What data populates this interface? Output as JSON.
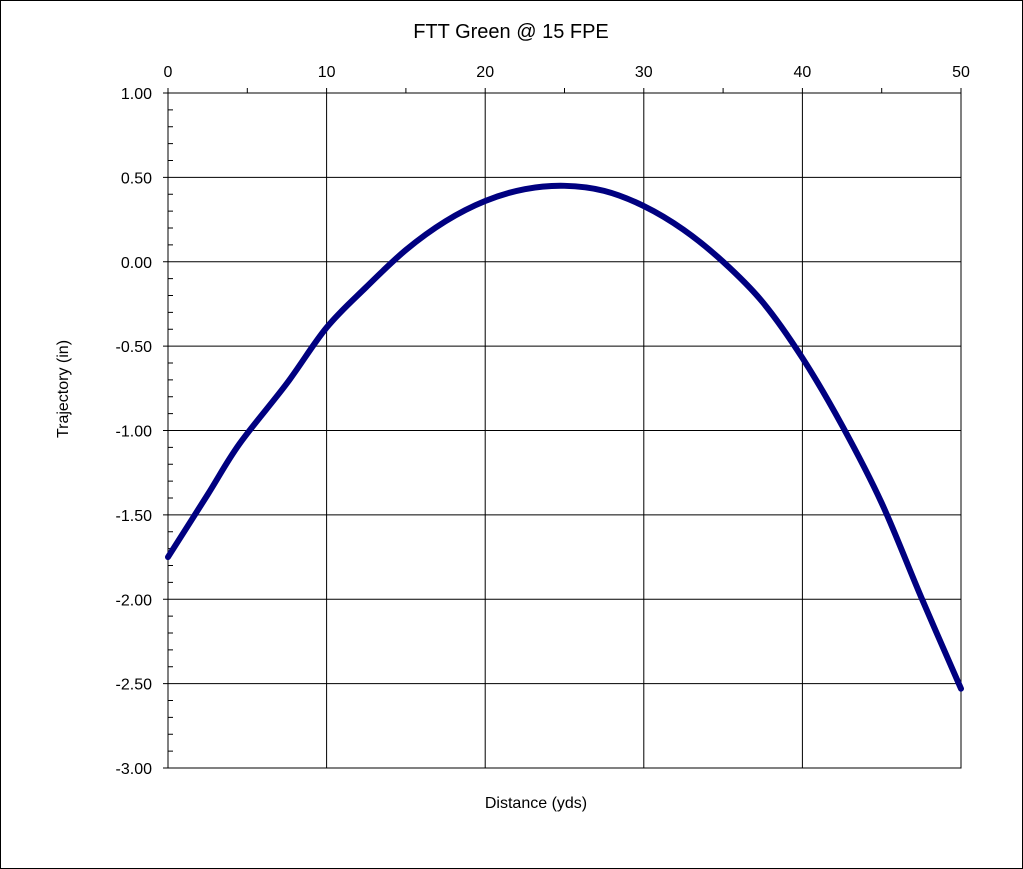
{
  "chart_data": {
    "type": "line",
    "title": "FTT Green @ 15 FPE",
    "xlabel": "Distance (yds)",
    "ylabel": "Trajectory (in)",
    "xlim": [
      0,
      50
    ],
    "ylim": [
      -3.0,
      1.0
    ],
    "x_ticks": [
      "0",
      "10",
      "20",
      "30",
      "40",
      "50"
    ],
    "y_ticks": [
      "1.00",
      "0.50",
      "0.00",
      "-0.50",
      "-1.00",
      "-1.50",
      "-2.00",
      "-2.50",
      "-3.00"
    ],
    "x_axis_position": "top",
    "grid": true,
    "legend": "none",
    "series": [
      {
        "color": "#000080",
        "x": [
          0,
          2.5,
          4.5,
          7.5,
          10,
          12.5,
          15,
          17.5,
          20,
          22.5,
          25,
          27.5,
          30,
          32.5,
          35,
          37.5,
          40,
          42.5,
          45,
          47.5,
          50
        ],
        "y": [
          -1.75,
          -1.38,
          -1.08,
          -0.72,
          -0.39,
          -0.15,
          0.07,
          0.24,
          0.36,
          0.43,
          0.45,
          0.42,
          0.33,
          0.19,
          0.0,
          -0.24,
          -0.57,
          -0.97,
          -1.43,
          -1.99,
          -2.53
        ]
      }
    ]
  }
}
